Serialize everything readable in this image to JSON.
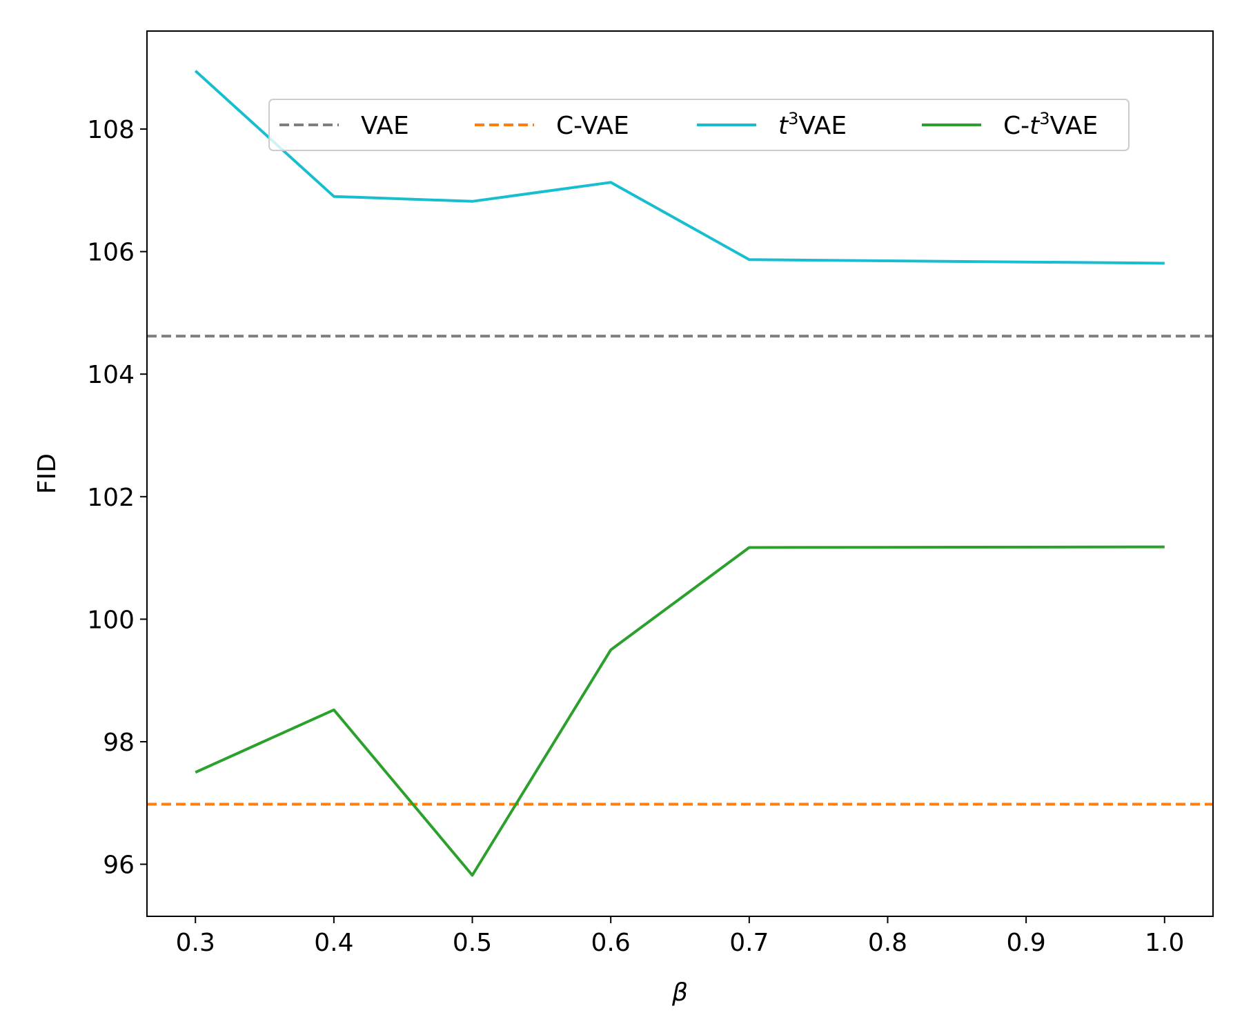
{
  "chart_data": {
    "type": "line",
    "xlabel": "β",
    "ylabel": "FID",
    "xlim": [
      0.265,
      1.035
    ],
    "ylim": [
      95.15,
      109.6
    ],
    "xticks": [
      "0.3",
      "0.4",
      "0.5",
      "0.6",
      "0.7",
      "0.8",
      "0.9",
      "1.0"
    ],
    "yticks": [
      "96",
      "98",
      "100",
      "102",
      "104",
      "106",
      "108"
    ],
    "grid": false,
    "legend_placement": "upper center",
    "baselines": [
      {
        "name": "VAE",
        "value": 104.62,
        "color": "#7f7f7f",
        "style": "dashed"
      },
      {
        "name": "C-VAE",
        "value": 96.98,
        "color": "#ff7f0e",
        "style": "dashed"
      }
    ],
    "x": [
      0.3,
      0.4,
      0.5,
      0.6,
      0.7,
      1.0
    ],
    "series": [
      {
        "name": "t³VAE",
        "name_prefix": "",
        "name_italic": "t",
        "name_sup": "3",
        "name_suffix": "VAE",
        "color": "#17becf",
        "style": "solid",
        "values": [
          108.95,
          106.9,
          106.82,
          107.13,
          105.87,
          105.81
        ]
      },
      {
        "name": "C-t³VAE",
        "name_prefix": "C-",
        "name_italic": "t",
        "name_sup": "3",
        "name_suffix": "VAE",
        "color": "#2ca02c",
        "style": "solid",
        "values": [
          97.5,
          98.52,
          95.82,
          99.5,
          101.17,
          101.18
        ]
      }
    ]
  }
}
